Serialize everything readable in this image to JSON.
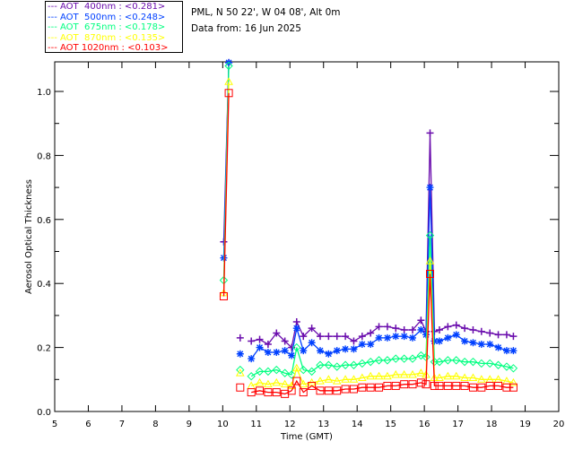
{
  "chart_data": {
    "type": "line",
    "title": "",
    "station": "PML, N 50 22', W 04 08', Alt 0m",
    "date_label": "Data from: 16 Jun 2025",
    "xlabel": "Time (GMT)",
    "ylabel": "Aerosol Optical Thickness",
    "xlim": [
      5,
      20
    ],
    "ylim": [
      0,
      1.09
    ],
    "xticks": [
      "5",
      "6",
      "7",
      "8",
      "9",
      "10",
      "11",
      "12",
      "13",
      "14",
      "15",
      "16",
      "17",
      "18",
      "19",
      "20"
    ],
    "yticks": [
      "0.0",
      "0.2",
      "0.4",
      "0.6",
      "0.8",
      "1.0"
    ],
    "grid": false,
    "legend_placement": "top-left outside",
    "segment_breaks_before_index": [
      2,
      3
    ],
    "x": [
      10.03,
      10.18,
      10.52,
      10.85,
      11.1,
      11.35,
      11.6,
      11.85,
      12.05,
      12.2,
      12.4,
      12.65,
      12.9,
      13.15,
      13.4,
      13.65,
      13.9,
      14.15,
      14.4,
      14.65,
      14.9,
      15.15,
      15.4,
      15.65,
      15.9,
      16.05,
      16.17,
      16.3,
      16.45,
      16.7,
      16.95,
      17.2,
      17.45,
      17.7,
      17.95,
      18.2,
      18.45,
      18.65
    ],
    "series": [
      {
        "name": "AOT  400nm",
        "mean": "<0.281>",
        "color": "#6a0dad",
        "marker": "plus",
        "values": [
          0.53,
          1.09,
          0.23,
          0.22,
          0.225,
          0.21,
          0.245,
          0.22,
          0.2,
          0.28,
          0.235,
          0.26,
          0.235,
          0.235,
          0.235,
          0.235,
          0.22,
          0.235,
          0.245,
          0.265,
          0.265,
          0.26,
          0.255,
          0.255,
          0.285,
          0.25,
          0.87,
          0.25,
          0.255,
          0.265,
          0.27,
          0.26,
          0.255,
          0.25,
          0.245,
          0.24,
          0.24,
          0.235
        ]
      },
      {
        "name": "AOT  500nm",
        "mean": "<0.248>",
        "color": "#0040ff",
        "marker": "asterisk",
        "values": [
          0.48,
          1.09,
          0.18,
          0.165,
          0.2,
          0.185,
          0.185,
          0.19,
          0.175,
          0.26,
          0.19,
          0.215,
          0.19,
          0.18,
          0.19,
          0.195,
          0.195,
          0.21,
          0.21,
          0.23,
          0.23,
          0.235,
          0.235,
          0.23,
          0.255,
          0.24,
          0.7,
          0.22,
          0.22,
          0.23,
          0.24,
          0.22,
          0.215,
          0.21,
          0.21,
          0.2,
          0.19,
          0.19
        ]
      },
      {
        "name": "AOT  675nm",
        "mean": "<0.178>",
        "color": "#00ff80",
        "marker": "diamond",
        "values": [
          0.41,
          1.08,
          0.13,
          0.11,
          0.125,
          0.125,
          0.13,
          0.12,
          0.115,
          0.2,
          0.13,
          0.125,
          0.145,
          0.145,
          0.14,
          0.145,
          0.145,
          0.15,
          0.155,
          0.16,
          0.16,
          0.165,
          0.165,
          0.165,
          0.175,
          0.17,
          0.55,
          0.155,
          0.155,
          0.16,
          0.16,
          0.155,
          0.155,
          0.15,
          0.15,
          0.145,
          0.14,
          0.135
        ]
      },
      {
        "name": "AOT  870nm",
        "mean": "<0.135>",
        "color": "#ffff00",
        "marker": "triangle",
        "values": [
          0.37,
          1.03,
          0.12,
          0.08,
          0.09,
          0.085,
          0.09,
          0.085,
          0.08,
          0.135,
          0.085,
          0.09,
          0.095,
          0.1,
          0.095,
          0.1,
          0.1,
          0.105,
          0.11,
          0.11,
          0.11,
          0.115,
          0.115,
          0.115,
          0.12,
          0.115,
          0.47,
          0.105,
          0.105,
          0.11,
          0.11,
          0.105,
          0.105,
          0.1,
          0.1,
          0.1,
          0.095,
          0.09
        ]
      },
      {
        "name": "AOT 1020nm",
        "mean": "<0.103>",
        "color": "#ff0000",
        "marker": "square",
        "values": [
          0.36,
          0.995,
          0.075,
          0.06,
          0.065,
          0.06,
          0.06,
          0.055,
          0.065,
          0.095,
          0.06,
          0.08,
          0.065,
          0.065,
          0.065,
          0.07,
          0.07,
          0.075,
          0.075,
          0.075,
          0.08,
          0.08,
          0.085,
          0.085,
          0.09,
          0.085,
          0.43,
          0.08,
          0.08,
          0.08,
          0.08,
          0.08,
          0.075,
          0.075,
          0.08,
          0.08,
          0.075,
          0.075
        ]
      }
    ]
  }
}
